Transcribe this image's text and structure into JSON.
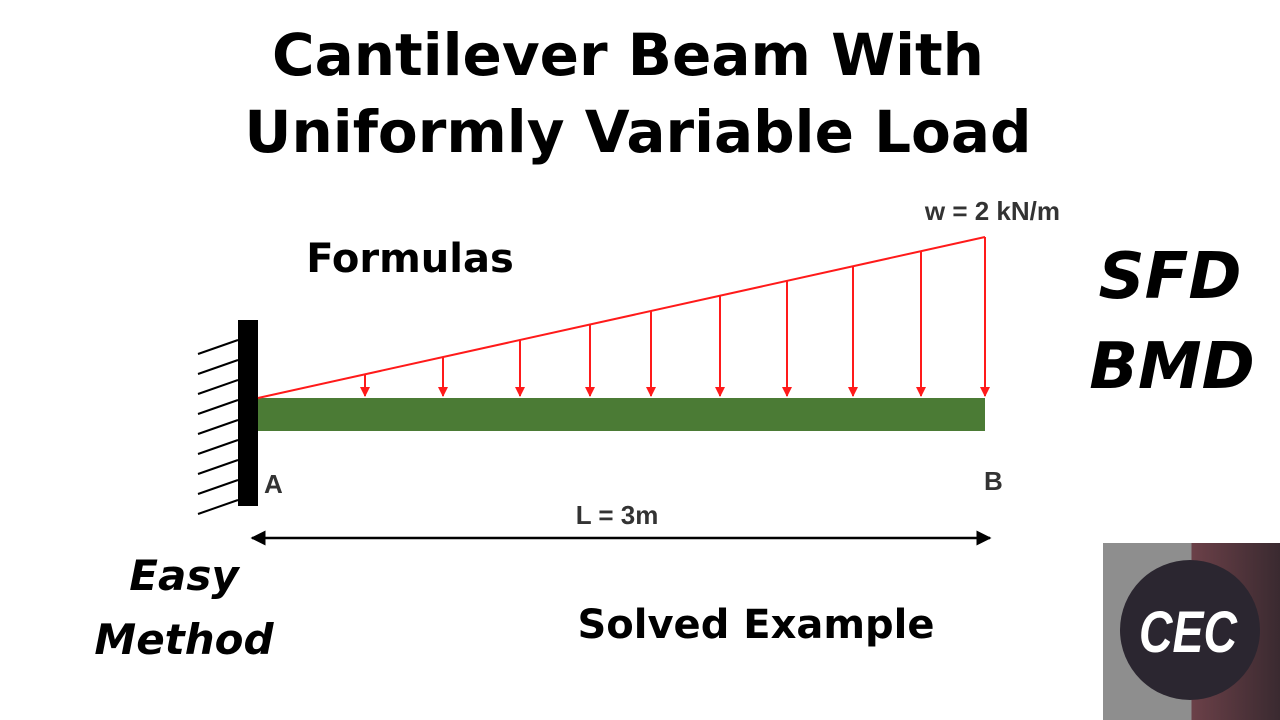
{
  "title": {
    "line1": "Cantilever Beam With",
    "line2": "Uniformly Variable Load"
  },
  "diagram": {
    "load_label": "w = 2 kN/m",
    "support_a": "A",
    "support_b": "B",
    "length_label": "L = 3m"
  },
  "labels": {
    "formulas": "Formulas",
    "sfd": "SFD",
    "bmd": "BMD",
    "easy": "Easy",
    "method": "Method",
    "solved_example": "Solved Example"
  },
  "logo": {
    "text": "CEC"
  }
}
